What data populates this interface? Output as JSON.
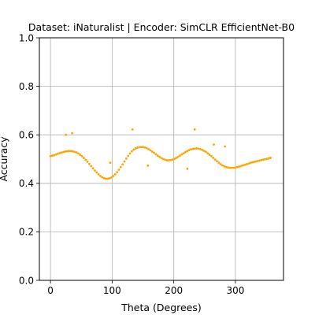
{
  "chart_data": {
    "type": "scatter",
    "title": "Dataset: iNaturalist | Encoder: SimCLR EfficientNet-B0",
    "xlabel": "Theta (Degrees)",
    "ylabel": "Accuracy",
    "xlim": [
      -18,
      378
    ],
    "ylim": [
      0.0,
      1.0
    ],
    "x_ticks": [
      0,
      100,
      200,
      300
    ],
    "x_tick_labels": [
      "0",
      "100",
      "200",
      "300"
    ],
    "y_ticks": [
      0.0,
      0.2,
      0.4,
      0.6,
      0.8,
      1.0
    ],
    "y_tick_labels": [
      "0.0",
      "0.2",
      "0.4",
      "0.6",
      "0.8",
      "1.0"
    ],
    "grid": true,
    "marker_color": "#ffa500",
    "series": [
      {
        "points": [
          [
            0,
            0.512
          ],
          [
            3,
            0.514
          ],
          [
            6,
            0.516
          ],
          [
            9,
            0.519
          ],
          [
            12,
            0.522
          ],
          [
            15,
            0.525
          ],
          [
            18,
            0.527
          ],
          [
            21,
            0.529
          ],
          [
            24,
            0.531
          ],
          [
            27,
            0.532
          ],
          [
            30,
            0.533
          ],
          [
            33,
            0.533
          ],
          [
            36,
            0.532
          ],
          [
            39,
            0.53
          ],
          [
            42,
            0.527
          ],
          [
            45,
            0.523
          ],
          [
            48,
            0.518
          ],
          [
            51,
            0.512
          ],
          [
            54,
            0.505
          ],
          [
            57,
            0.497
          ],
          [
            60,
            0.489
          ],
          [
            63,
            0.48
          ],
          [
            66,
            0.471
          ],
          [
            69,
            0.462
          ],
          [
            72,
            0.453
          ],
          [
            75,
            0.445
          ],
          [
            78,
            0.437
          ],
          [
            81,
            0.43
          ],
          [
            84,
            0.425
          ],
          [
            87,
            0.421
          ],
          [
            90,
            0.419
          ],
          [
            93,
            0.419
          ],
          [
            96,
            0.421
          ],
          [
            99,
            0.424
          ],
          [
            102,
            0.43
          ],
          [
            105,
            0.437
          ],
          [
            108,
            0.446
          ],
          [
            111,
            0.456
          ],
          [
            114,
            0.467
          ],
          [
            117,
            0.478
          ],
          [
            120,
            0.49
          ],
          [
            123,
            0.502
          ],
          [
            126,
            0.513
          ],
          [
            129,
            0.523
          ],
          [
            132,
            0.532
          ],
          [
            135,
            0.539
          ],
          [
            138,
            0.544
          ],
          [
            141,
            0.547
          ],
          [
            144,
            0.549
          ],
          [
            147,
            0.55
          ],
          [
            150,
            0.55
          ],
          [
            153,
            0.548
          ],
          [
            156,
            0.545
          ],
          [
            159,
            0.541
          ],
          [
            162,
            0.536
          ],
          [
            165,
            0.531
          ],
          [
            168,
            0.526
          ],
          [
            171,
            0.52
          ],
          [
            174,
            0.514
          ],
          [
            177,
            0.509
          ],
          [
            180,
            0.504
          ],
          [
            183,
            0.5
          ],
          [
            186,
            0.497
          ],
          [
            189,
            0.495
          ],
          [
            192,
            0.495
          ],
          [
            195,
            0.496
          ],
          [
            198,
            0.498
          ],
          [
            201,
            0.501
          ],
          [
            204,
            0.505
          ],
          [
            207,
            0.509
          ],
          [
            210,
            0.514
          ],
          [
            213,
            0.519
          ],
          [
            216,
            0.524
          ],
          [
            219,
            0.529
          ],
          [
            222,
            0.533
          ],
          [
            225,
            0.537
          ],
          [
            228,
            0.54
          ],
          [
            231,
            0.542
          ],
          [
            234,
            0.543
          ],
          [
            237,
            0.544
          ],
          [
            240,
            0.543
          ],
          [
            243,
            0.541
          ],
          [
            246,
            0.538
          ],
          [
            249,
            0.534
          ],
          [
            252,
            0.53
          ],
          [
            255,
            0.524
          ],
          [
            258,
            0.518
          ],
          [
            261,
            0.512
          ],
          [
            264,
            0.505
          ],
          [
            267,
            0.498
          ],
          [
            270,
            0.491
          ],
          [
            273,
            0.485
          ],
          [
            276,
            0.479
          ],
          [
            279,
            0.474
          ],
          [
            282,
            0.47
          ],
          [
            285,
            0.467
          ],
          [
            288,
            0.465
          ],
          [
            291,
            0.464
          ],
          [
            294,
            0.464
          ],
          [
            297,
            0.464
          ],
          [
            300,
            0.465
          ],
          [
            303,
            0.467
          ],
          [
            306,
            0.469
          ],
          [
            309,
            0.471
          ],
          [
            312,
            0.474
          ],
          [
            315,
            0.476
          ],
          [
            318,
            0.479
          ],
          [
            321,
            0.481
          ],
          [
            324,
            0.484
          ],
          [
            327,
            0.486
          ],
          [
            330,
            0.488
          ],
          [
            333,
            0.49
          ],
          [
            336,
            0.492
          ],
          [
            339,
            0.494
          ],
          [
            342,
            0.496
          ],
          [
            345,
            0.498
          ],
          [
            348,
            0.499
          ],
          [
            351,
            0.501
          ],
          [
            354,
            0.503
          ],
          [
            357,
            0.505
          ],
          [
            25,
            0.6
          ],
          [
            35,
            0.607
          ],
          [
            97,
            0.485
          ],
          [
            133,
            0.622
          ],
          [
            158,
            0.473
          ],
          [
            222,
            0.46
          ],
          [
            234,
            0.622
          ],
          [
            265,
            0.56
          ],
          [
            283,
            0.552
          ]
        ]
      }
    ]
  }
}
